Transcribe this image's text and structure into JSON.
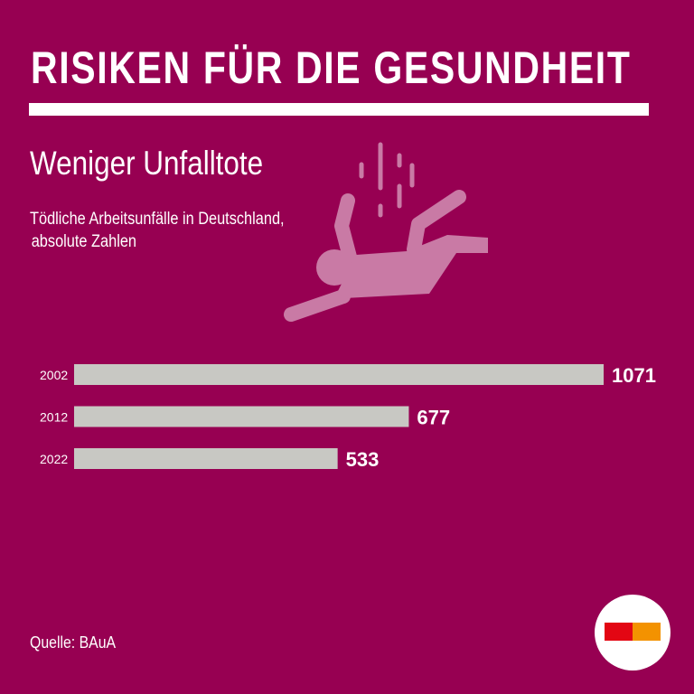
{
  "header": {
    "title": "RISIKEN FÜR DIE GESUNDHEIT"
  },
  "subtitle": "Weniger Unfalltote",
  "description": [
    "Tödliche Arbeitsunfälle in Deutschland,",
    "absolute Zahlen"
  ],
  "source": "Quelle: BAuA",
  "colors": {
    "background": "#970052",
    "bar": "#c8c8c3",
    "icon": "#c97aa5",
    "logo_red": "#e30613",
    "logo_orange": "#f39200"
  },
  "icon": "falling-person-icon",
  "chart_data": {
    "type": "bar",
    "orientation": "horizontal",
    "title": "Tödliche Arbeitsunfälle in Deutschland, absolute Zahlen",
    "categories": [
      "2002",
      "2012",
      "2022"
    ],
    "values": [
      1071,
      677,
      533
    ],
    "labels": [
      "1071",
      "677",
      "533"
    ],
    "xlim": [
      0,
      1071
    ],
    "grid": false
  }
}
